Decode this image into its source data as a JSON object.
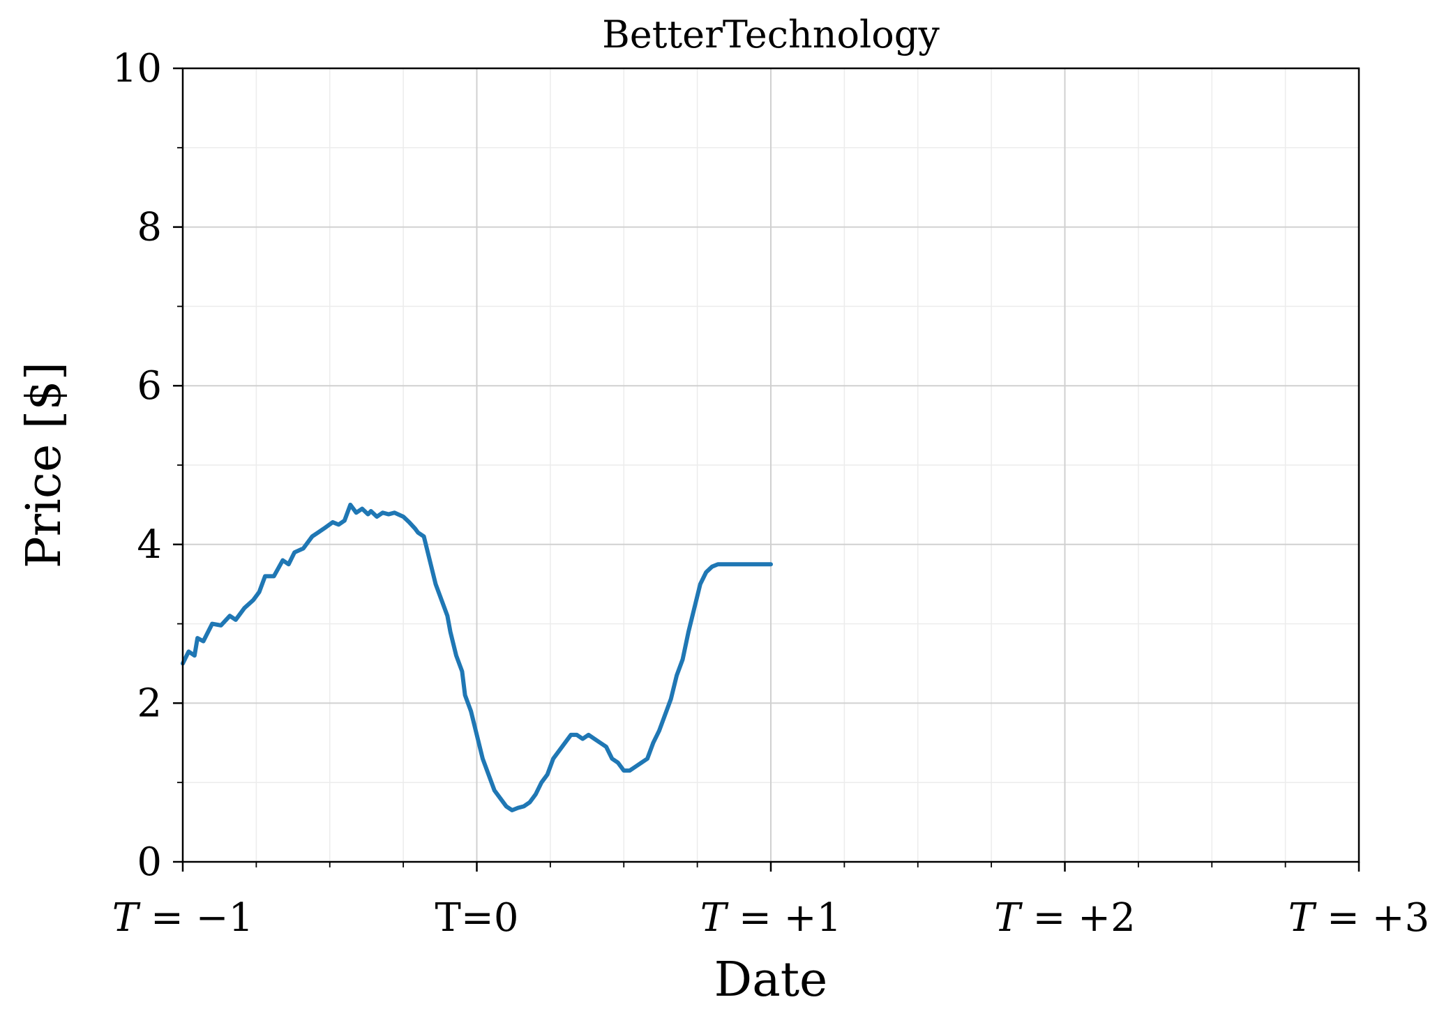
{
  "chart_data": {
    "type": "line",
    "title": "BetterTechnology",
    "xlabel": "Date",
    "ylabel": "Price [$]",
    "xlim": [
      -1,
      3
    ],
    "ylim": [
      0,
      10
    ],
    "x_ticks": [
      {
        "value": -1,
        "label": "T = −1",
        "italic_t": true
      },
      {
        "value": 0,
        "label": "T=0",
        "italic_t": false
      },
      {
        "value": 1,
        "label": "T = +1",
        "italic_t": true
      },
      {
        "value": 2,
        "label": "T = +2",
        "italic_t": true
      },
      {
        "value": 3,
        "label": "T = +3",
        "italic_t": true
      }
    ],
    "x_minor_ticks": [
      -0.75,
      -0.5,
      -0.25,
      0.25,
      0.5,
      0.75,
      1.25,
      1.5,
      1.75,
      2.25,
      2.5,
      2.75
    ],
    "y_ticks": [
      0,
      2,
      4,
      6,
      8,
      10
    ],
    "y_minor_ticks": [
      1,
      3,
      5,
      7,
      9
    ],
    "grid": true,
    "series": [
      {
        "color": "#1f77b4",
        "x": [
          -1.0,
          -0.98,
          -0.96,
          -0.95,
          -0.93,
          -0.9,
          -0.87,
          -0.84,
          -0.82,
          -0.79,
          -0.76,
          -0.74,
          -0.72,
          -0.69,
          -0.66,
          -0.64,
          -0.62,
          -0.59,
          -0.56,
          -0.54,
          -0.52,
          -0.49,
          -0.47,
          -0.45,
          -0.43,
          -0.41,
          -0.39,
          -0.37,
          -0.36,
          -0.34,
          -0.32,
          -0.3,
          -0.28,
          -0.25,
          -0.23,
          -0.21,
          -0.2,
          -0.18,
          -0.16,
          -0.14,
          -0.12,
          -0.1,
          -0.09,
          -0.07,
          -0.05,
          -0.04,
          -0.02,
          0.0,
          0.02,
          0.04,
          0.06,
          0.08,
          0.1,
          0.12,
          0.14,
          0.16,
          0.18,
          0.2,
          0.22,
          0.24,
          0.26,
          0.28,
          0.3,
          0.32,
          0.34,
          0.36,
          0.38,
          0.4,
          0.42,
          0.44,
          0.46,
          0.48,
          0.5,
          0.52,
          0.54,
          0.56,
          0.58,
          0.6,
          0.62,
          0.64,
          0.66,
          0.68,
          0.7,
          0.72,
          0.74,
          0.76,
          0.78,
          0.8,
          0.82,
          0.84,
          0.86,
          0.88,
          0.9,
          0.92,
          0.94,
          0.96,
          0.98,
          1.0
        ],
        "y": [
          2.5,
          2.65,
          2.6,
          2.82,
          2.78,
          3.0,
          2.98,
          3.1,
          3.05,
          3.2,
          3.3,
          3.4,
          3.6,
          3.6,
          3.8,
          3.75,
          3.9,
          3.95,
          4.1,
          4.15,
          4.2,
          4.28,
          4.25,
          4.3,
          4.5,
          4.4,
          4.45,
          4.38,
          4.42,
          4.35,
          4.4,
          4.38,
          4.4,
          4.35,
          4.28,
          4.2,
          4.15,
          4.1,
          3.8,
          3.5,
          3.3,
          3.1,
          2.9,
          2.6,
          2.4,
          2.1,
          1.9,
          1.6,
          1.3,
          1.1,
          0.9,
          0.8,
          0.7,
          0.65,
          0.68,
          0.7,
          0.75,
          0.85,
          1.0,
          1.1,
          1.3,
          1.4,
          1.5,
          1.6,
          1.6,
          1.55,
          1.6,
          1.55,
          1.5,
          1.45,
          1.3,
          1.25,
          1.15,
          1.15,
          1.2,
          1.25,
          1.3,
          1.5,
          1.65,
          1.85,
          2.05,
          2.35,
          2.55,
          2.9,
          3.2,
          3.5,
          3.65,
          3.72,
          3.75,
          3.75,
          3.75,
          3.75,
          3.75,
          3.75,
          3.75,
          3.75,
          3.75,
          3.75
        ]
      }
    ]
  }
}
